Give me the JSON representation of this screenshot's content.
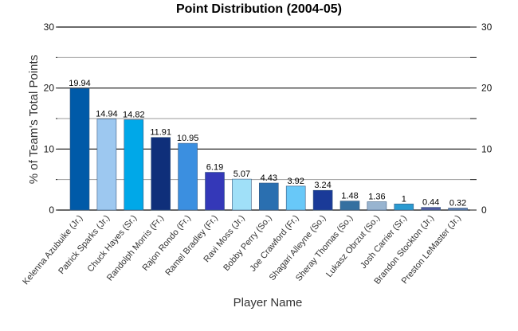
{
  "chart_data": {
    "type": "bar",
    "title": "Point Distribution (2004-05)",
    "xlabel": "Player Name",
    "ylabel": "% of Team's Total Points",
    "ylim": [
      0,
      30
    ],
    "yticks": [
      0,
      10,
      20,
      30
    ],
    "grid": true,
    "categories": [
      "Kelenna Azubuike (Jr.)",
      "Patrick Sparks (Jr.)",
      "Chuck Hayes (Sr.)",
      "Randolph Morris (Fr.)",
      "Rajon Rondo (Fr.)",
      "Ramel Bradley (Fr.)",
      "Ravi Moss (Jr.)",
      "Bobby Perry (So.)",
      "Joe Crawford (Fr.)",
      "Shagari Alleyne (So.)",
      "Sheray Thomas (So.)",
      "Lukasz Obrzut (So.)",
      "Josh Carrier (Sr.)",
      "Brandon Stockton (Jr.)",
      "Preston LeMaster (Jr.)"
    ],
    "values": [
      19.94,
      14.94,
      14.82,
      11.91,
      10.95,
      6.19,
      5.07,
      4.43,
      3.92,
      3.24,
      1.48,
      1.36,
      1,
      0.44,
      0.32
    ],
    "data_labels": [
      "19.94",
      "14.94",
      "14.82",
      "11.91",
      "10.95",
      "6.19",
      "5.07",
      "4.43",
      "3.92",
      "3.24",
      "1.48",
      "1.36",
      "1",
      "0.44",
      "0.32"
    ],
    "colors": [
      "#005aa8",
      "#9dc8f0",
      "#00a8e8",
      "#0f2f7a",
      "#3b8fe0",
      "#3438b8",
      "#a0e0f8",
      "#2a6fb0",
      "#68c8f8",
      "#1a3a98",
      "#3570a0",
      "#98b4d0",
      "#2a9ad0",
      "#505aa0",
      "#6080b0"
    ]
  }
}
